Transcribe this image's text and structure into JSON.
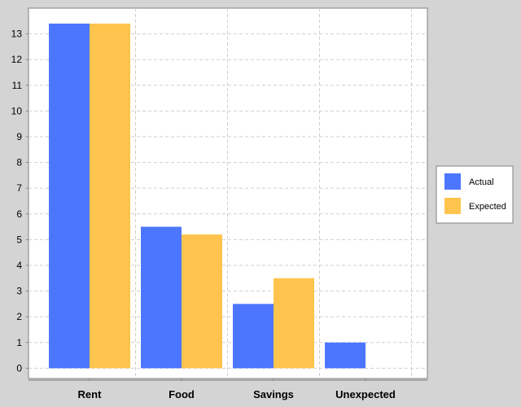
{
  "colors": {
    "background": "#d4d4d4",
    "plot_background": "#ffffff",
    "grid": "#cfcfcf",
    "axis": "#808080"
  },
  "chart_data": {
    "type": "bar",
    "categories": [
      "Rent",
      "Food",
      "Savings",
      "Unexpected"
    ],
    "series": [
      {
        "name": "Actual",
        "color": "#4d76ff",
        "values": [
          13.4,
          5.5,
          2.5,
          1.0
        ]
      },
      {
        "name": "Expected",
        "color": "#ffc44d",
        "values": [
          13.4,
          5.2,
          3.5,
          null
        ]
      }
    ],
    "yticks": [
      0,
      1,
      2,
      3,
      4,
      5,
      6,
      7,
      8,
      9,
      10,
      11,
      12,
      13
    ],
    "ylim": [
      -0.4,
      14.0
    ],
    "grid": true,
    "legend_position": "right"
  }
}
